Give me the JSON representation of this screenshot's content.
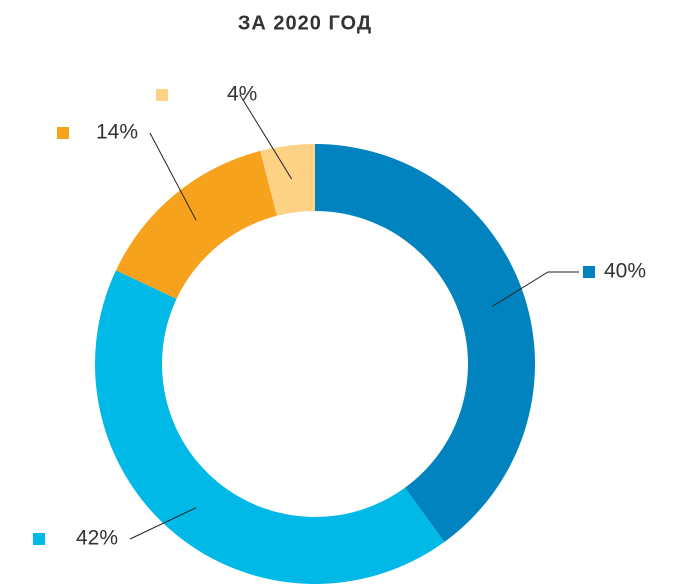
{
  "chart_data": {
    "type": "donut",
    "title": "ЗА 2020 ГОД",
    "values": [
      40,
      42,
      14,
      4
    ],
    "value_labels": [
      "40%",
      "42%",
      "14%",
      "4%"
    ],
    "colors": [
      "#0083be",
      "#00b9e6",
      "#f6a21d",
      "#fdd285"
    ]
  }
}
